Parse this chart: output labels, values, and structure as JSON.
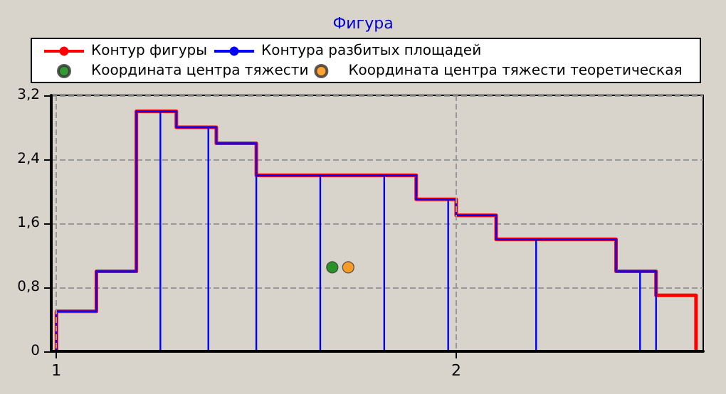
{
  "chart_data": {
    "type": "line",
    "title": "Фигура",
    "xlim": [
      0.987,
      2.618
    ],
    "xticks": [
      1,
      2
    ],
    "ylim": [
      0,
      3.2
    ],
    "yticks": [
      {
        "value": 0,
        "label": "0"
      },
      {
        "value": 0.8,
        "label": "0,8"
      },
      {
        "value": 1.6,
        "label": "1,6"
      },
      {
        "value": 2.4,
        "label": "2,4"
      },
      {
        "value": 3.2,
        "label": "3,2"
      }
    ],
    "grid": true,
    "legend": "top",
    "marker": "none",
    "line_style": "solid",
    "series": [
      {
        "name": "Контур фигуры",
        "color": "#ff0000",
        "x": [
          1,
          1,
          1.1,
          1.1,
          1.2,
          1.2,
          1.3,
          1.3,
          1.4,
          1.4,
          1.5,
          1.5,
          1.9,
          1.9,
          2.0,
          2.0,
          2.1,
          2.1,
          2.4,
          2.4,
          2.5,
          2.5,
          2.6,
          2.6
        ],
        "values": [
          0,
          0.5,
          0.5,
          1.0,
          1.0,
          3.0,
          3.0,
          2.8,
          2.8,
          2.6,
          2.6,
          2.2,
          2.2,
          1.9,
          1.9,
          1.7,
          1.7,
          1.4,
          1.4,
          1.0,
          1.0,
          0.7,
          0.7,
          0
        ]
      },
      {
        "name": "Контура разбитых площадей",
        "color": "#0000ff",
        "x": [
          1,
          1,
          1.1,
          1.1,
          1.2,
          1.2,
          1.3,
          1.3,
          1.4,
          1.4,
          1.5,
          1.5,
          1.9,
          1.9,
          2.0,
          2.0,
          2.1,
          2.1,
          2.4,
          2.4,
          2.5,
          2.5,
          2.5,
          2.46,
          2.46,
          2.46,
          2.2,
          2.2,
          2.2,
          1.98,
          1.98,
          1.98,
          1.82,
          1.82,
          1.82,
          1.66,
          1.66,
          1.66,
          1.5,
          1.5,
          1.5,
          1.38,
          1.38,
          1.38,
          1.26,
          1.26,
          1.26
        ],
        "values": [
          0,
          0.5,
          0.5,
          1.0,
          1.0,
          3.0,
          3.0,
          2.8,
          2.8,
          2.6,
          2.6,
          2.2,
          2.2,
          1.9,
          1.9,
          1.7,
          1.7,
          1.4,
          1.4,
          1.0,
          1.0,
          0.7,
          0,
          0,
          1.0,
          0,
          0,
          1.4,
          0,
          0,
          1.9,
          0,
          0,
          2.2,
          0,
          0,
          2.2,
          0,
          0,
          2.6,
          0,
          0,
          2.8,
          0,
          0,
          3.0,
          0
        ]
      },
      {
        "name": "Координата центра тяжести",
        "type": "scatter",
        "marker": "circle",
        "color": "#008000",
        "x": [
          1.69
        ],
        "values": [
          1.05
        ]
      },
      {
        "name": "Координата центра тяжести теоретическая",
        "type": "scatter",
        "marker": "circle",
        "color": "#ff8c00",
        "x": [
          1.73
        ],
        "values": [
          1.05
        ]
      }
    ]
  }
}
